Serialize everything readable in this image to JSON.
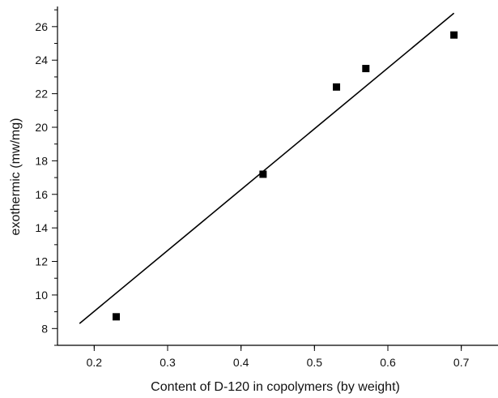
{
  "chart_data": {
    "type": "scatter",
    "xlabel": "Content of D-120 in copolymers (by weight)",
    "ylabel": "exothermic (mw/mg)",
    "xlim": [
      0.15,
      0.75
    ],
    "ylim": [
      7,
      27.2
    ],
    "x_ticks": [
      0.2,
      0.3,
      0.4,
      0.5,
      0.6,
      0.7
    ],
    "x_tick_labels": [
      "0.2",
      "0.3",
      "0.4",
      "0.5",
      "0.6",
      "0.7"
    ],
    "y_ticks": [
      8,
      10,
      12,
      14,
      16,
      18,
      20,
      22,
      24,
      26
    ],
    "y_tick_labels": [
      "8",
      "10",
      "12",
      "14",
      "16",
      "18",
      "20",
      "22",
      "24",
      "26"
    ],
    "grid": false,
    "series": [
      {
        "marker": "square",
        "color": "#000000",
        "points": [
          {
            "x": 0.23,
            "y": 8.7
          },
          {
            "x": 0.43,
            "y": 17.2
          },
          {
            "x": 0.53,
            "y": 22.4
          },
          {
            "x": 0.57,
            "y": 23.5
          },
          {
            "x": 0.69,
            "y": 25.5
          }
        ]
      }
    ],
    "fit_line": {
      "x": [
        0.18,
        0.69
      ],
      "y": [
        8.3,
        26.8
      ],
      "color": "#000000"
    }
  }
}
